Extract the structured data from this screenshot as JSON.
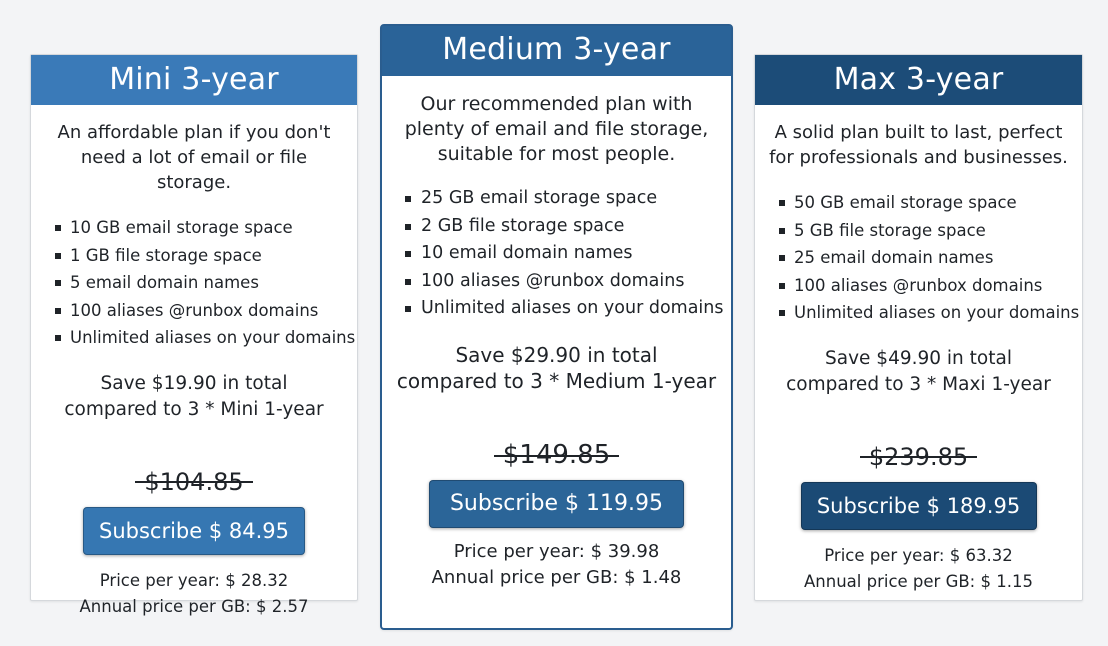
{
  "colors": {
    "mini_header": "#3a7ab8",
    "medium_header": "#2a6398",
    "max_header": "#1c4c78",
    "mini_button": "#3677b2",
    "medium_button": "#2b6598",
    "max_button": "#1b4a75"
  },
  "plans": [
    {
      "title": "Mini 3-year",
      "description": "An affordable plan if you don't need a lot of email or file storage.",
      "features": [
        "10 GB email storage space",
        "1 GB file storage space",
        "5 email domain names",
        "100 aliases @runbox domains",
        "Unlimited aliases on your domains"
      ],
      "save_line1": "Save $19.90 in total",
      "save_line2": "compared to 3 * Mini 1-year",
      "old_price": "$104.85",
      "button_label": "Subscribe $ 84.95",
      "price_per_year": "Price per year: $ 28.32",
      "annual_price_per_gb": "Annual price per GB: $ 2.57"
    },
    {
      "title": "Medium 3-year",
      "description": "Our recommended plan with plenty of email and file storage, suitable for most people.",
      "features": [
        "25 GB email storage space",
        "2 GB file storage space",
        "10 email domain names",
        "100 aliases @runbox domains",
        "Unlimited aliases on your domains"
      ],
      "save_line1": "Save $29.90 in total",
      "save_line2": "compared to 3 * Medium 1-year",
      "old_price": "$149.85",
      "button_label": "Subscribe $ 119.95",
      "price_per_year": "Price per year: $ 39.98",
      "annual_price_per_gb": "Annual price per GB: $ 1.48"
    },
    {
      "title": "Max 3-year",
      "description": "A solid plan built to last, perfect for professionals and businesses.",
      "features": [
        "50 GB email storage space",
        "5 GB file storage space",
        "25 email domain names",
        "100 aliases @runbox domains",
        "Unlimited aliases on your domains"
      ],
      "save_line1": "Save $49.90 in total",
      "save_line2": "compared to 3 * Maxi 1-year",
      "old_price": "$239.85",
      "button_label": "Subscribe $ 189.95",
      "price_per_year": "Price per year: $ 63.32",
      "annual_price_per_gb": "Annual price per GB: $ 1.15"
    }
  ]
}
